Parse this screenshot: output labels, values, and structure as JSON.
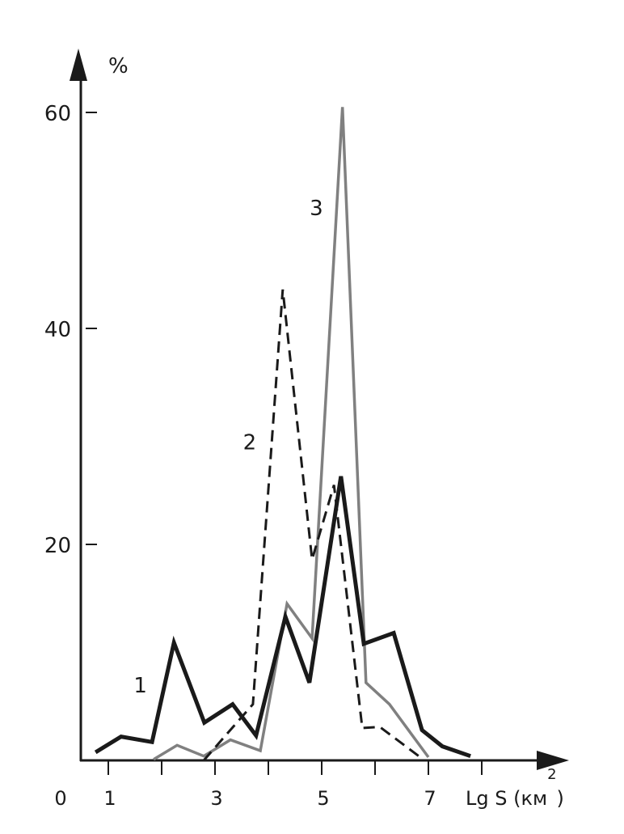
{
  "chart_data": {
    "type": "line",
    "xlabel": "Lg S (км",
    "xlabel_sup": "2",
    "xlabel_close": ")",
    "ylabel": "%",
    "origin_label": "0",
    "xlim": [
      0.48,
      8.5
    ],
    "ylim": [
      0,
      66
    ],
    "x_ticks": [
      1,
      2,
      3,
      4,
      5,
      6,
      7,
      8
    ],
    "x_tick_labels": [
      "1",
      "3",
      "5",
      "7"
    ],
    "x_tick_label_values": [
      1,
      3,
      5,
      7
    ],
    "y_ticks": [
      20,
      40,
      60
    ],
    "y_tick_labels": [
      "20",
      "40",
      "60"
    ],
    "grid": false,
    "series": [
      {
        "name": "1",
        "style": "solid-thick",
        "color": "#1a1a1a",
        "x": [
          0.76,
          1.24,
          1.82,
          2.23,
          2.8,
          3.33,
          3.77,
          4.32,
          4.77,
          5.36,
          5.79,
          6.35,
          6.88,
          7.26,
          7.79
        ],
        "y": [
          0.75,
          2.2,
          1.7,
          10.9,
          3.5,
          5.2,
          2.3,
          13.3,
          7.2,
          26.3,
          10.8,
          11.8,
          2.8,
          1.3,
          0.4
        ]
      },
      {
        "name": "2",
        "style": "dashed",
        "color": "#1a1a1a",
        "x": [
          2.79,
          3.71,
          4.27,
          4.82,
          5.23,
          5.76,
          6.09,
          6.82
        ],
        "y": [
          0,
          5.2,
          43.6,
          18.6,
          25.5,
          3.0,
          3.1,
          0.4
        ]
      },
      {
        "name": "3",
        "style": "solid",
        "color": "#808080",
        "x": [
          1.85,
          2.29,
          2.79,
          3.29,
          3.85,
          4.35,
          4.82,
          5.39,
          5.83,
          6.27,
          7.0
        ],
        "y": [
          0.1,
          1.4,
          0.4,
          1.9,
          0.9,
          14.5,
          11.3,
          60.5,
          7.2,
          5.2,
          0.3
        ]
      }
    ],
    "series_label_positions": [
      {
        "label": "1",
        "x": 1.6,
        "y": 6.3
      },
      {
        "label": "2",
        "x": 3.65,
        "y": 28.8
      },
      {
        "label": "3",
        "x": 4.9,
        "y": 50.5
      }
    ]
  }
}
